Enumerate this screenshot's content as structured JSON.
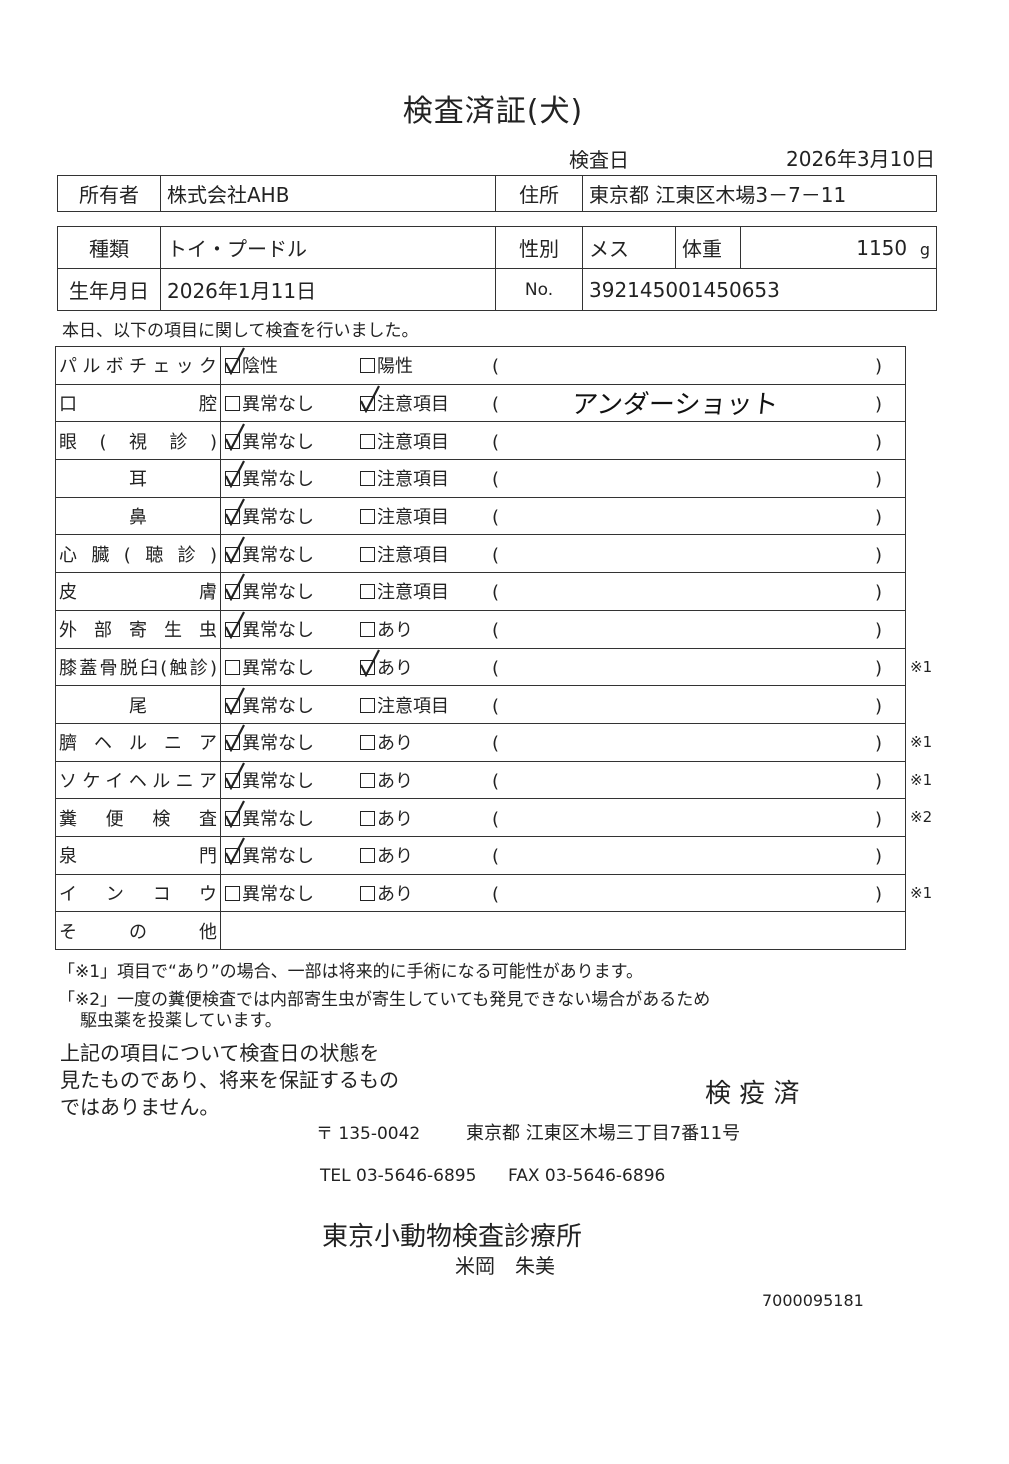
{
  "title": "検査済証(犬)",
  "exam_date_label": "検査日",
  "exam_date": "2026年3月10日",
  "owner": {
    "label": "所有者",
    "value": "株式会社AHB",
    "address_label": "住所",
    "address": "東京都 江東区木場3－7－11"
  },
  "pet": {
    "breed_label": "種類",
    "breed": "トイ・プードル",
    "sex_label": "性別",
    "sex": "メス",
    "weight_label": "体重",
    "weight": "1150",
    "weight_unit": "g",
    "birth_label": "生年月日",
    "birth": "2026年1月11日",
    "no_label": "No.",
    "no": "392145001450653"
  },
  "intro": "本日、以下の項目に関して検査を行いました。",
  "items": [
    {
      "label": "パルボチェック",
      "opt1": "陰性",
      "opt2": "陽性",
      "checked": 1,
      "note": "",
      "remark": "",
      "open": "(",
      "close": ")"
    },
    {
      "label": "口腔",
      "opt1": "異常なし",
      "opt2": "注意項目",
      "checked": 2,
      "note": "アンダーショット",
      "remark": "",
      "open": "(",
      "close": ")"
    },
    {
      "label": "眼(視診)",
      "opt1": "異常なし",
      "opt2": "注意項目",
      "checked": 1,
      "note": "",
      "remark": "",
      "open": "(",
      "close": ")"
    },
    {
      "label": "耳",
      "opt1": "異常なし",
      "opt2": "注意項目",
      "checked": 1,
      "note": "",
      "remark": "",
      "open": "(",
      "close": ")"
    },
    {
      "label": "鼻",
      "opt1": "異常なし",
      "opt2": "注意項目",
      "checked": 1,
      "note": "",
      "remark": "",
      "open": "(",
      "close": ")"
    },
    {
      "label": "心臓(聴診)",
      "opt1": "異常なし",
      "opt2": "注意項目",
      "checked": 1,
      "note": "",
      "remark": "",
      "open": "(",
      "close": ")"
    },
    {
      "label": "皮膚",
      "opt1": "異常なし",
      "opt2": "注意項目",
      "checked": 1,
      "note": "",
      "remark": "",
      "open": "(",
      "close": ")"
    },
    {
      "label": "外部寄生虫",
      "opt1": "異常なし",
      "opt2": "あり",
      "checked": 1,
      "note": "",
      "remark": "",
      "open": "(",
      "close": ")"
    },
    {
      "label": "膝蓋骨脱臼(触診)",
      "opt1": "異常なし",
      "opt2": "あり",
      "checked": 2,
      "note": "",
      "remark": "※1",
      "open": "(",
      "close": ")"
    },
    {
      "label": "尾",
      "opt1": "異常なし",
      "opt2": "注意項目",
      "checked": 1,
      "note": "",
      "remark": "",
      "open": "(",
      "close": ")"
    },
    {
      "label": "臍ヘルニア",
      "opt1": "異常なし",
      "opt2": "あり",
      "checked": 1,
      "note": "",
      "remark": "※1",
      "open": "(",
      "close": ")"
    },
    {
      "label": "ソケイヘルニア",
      "opt1": "異常なし",
      "opt2": "あり",
      "checked": 1,
      "note": "",
      "remark": "※1",
      "open": "(",
      "close": ")"
    },
    {
      "label": "糞便検査",
      "opt1": "異常なし",
      "opt2": "あり",
      "checked": 1,
      "note": "",
      "remark": "※2",
      "open": "(",
      "close": ")"
    },
    {
      "label": "泉門",
      "opt1": "異常なし",
      "opt2": "あり",
      "checked": 1,
      "note": "",
      "remark": "",
      "open": "(",
      "close": ")"
    },
    {
      "label": "インコウ",
      "opt1": "異常なし",
      "opt2": "あり",
      "checked": 0,
      "note": "",
      "remark": "※1",
      "open": "(",
      "close": ")"
    },
    {
      "label": "その他"
    }
  ],
  "footnotes": [
    "「※1」項目で“あり”の場合、一部は将来的に手術になる可能性があります。",
    "「※2」一度の糞便検査では内部寄生虫が寄生していても発見できない場合があるため",
    "駆虫薬を投薬しています。"
  ],
  "disclaimer": [
    "上記の項目について検査日の状態を",
    "見たものであり、将来を保証するもの",
    "ではありません。"
  ],
  "stamp": "検 疫 済",
  "clinic": {
    "postal": "〒 135-0042",
    "address": "東京都 江東区木場三丁目7番11号",
    "tel": "TEL 03-5646-6895",
    "fax": "FAX 03-5646-6896",
    "name": "東京小動物検査診療所",
    "person": "米岡　朱美"
  },
  "doc_code": "7000095181"
}
